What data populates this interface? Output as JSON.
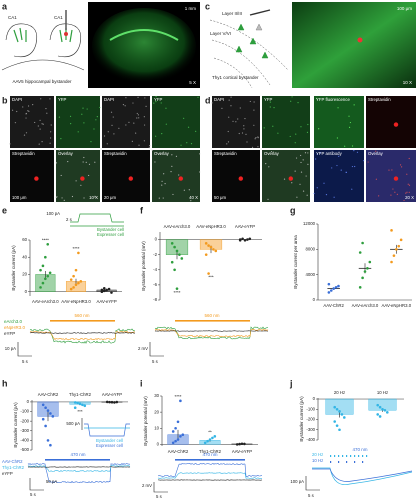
{
  "panel_labels": [
    "a",
    "b",
    "c",
    "d",
    "e",
    "f",
    "g",
    "h",
    "i",
    "j"
  ],
  "panel_a": {
    "left_label": "CA1",
    "right_label": "CA1",
    "caption": "AAV5 hippocampal bystander",
    "scale": "1 mm",
    "magnification": "5 X"
  },
  "panel_b": {
    "left": {
      "channels": [
        "DAPI",
        "YFP",
        "Streptavidin",
        "Overlay"
      ],
      "scale": "100 μm",
      "magnification": "10 X"
    },
    "right": {
      "channels": [
        "DAPI",
        "YFP",
        "Streptavidin",
        "Overlay"
      ],
      "scale": "20 μm",
      "magnification": "40 X"
    }
  },
  "panel_c": {
    "layer_top": "Layer II/III",
    "layer_bottom": "Layer V/VI",
    "caption": "Thy1 cortical bystander",
    "scale": "100 μm",
    "magnification": "10 X"
  },
  "panel_d": {
    "left": {
      "channels": [
        "DAPI",
        "YFP",
        "Streptavidin",
        "Overlay"
      ],
      "scale": "50 μm"
    },
    "right": {
      "channels": [
        "YFP fluorescence",
        "Streptavidin",
        "YFP antibody",
        "Overlay"
      ],
      "magnification": "20 X"
    }
  },
  "chart_data": [
    {
      "type": "bar",
      "y_label": "Bystander current (pA)",
      "categories": [
        "AAV-eArch3.0",
        "AAV-eNpHR3.0",
        "AAV-eYFP"
      ],
      "values": [
        20,
        12,
        2
      ],
      "errors": [
        4,
        3,
        0.8
      ],
      "colors": [
        "#2e9e3e",
        "#f39a1e",
        "#222222"
      ],
      "points": [
        [
          5,
          10,
          15,
          18,
          22,
          25,
          30,
          40,
          55
        ],
        [
          3,
          5,
          8,
          10,
          12,
          14,
          18,
          25,
          45
        ],
        [
          0,
          1,
          2,
          3,
          -1,
          2,
          4
        ]
      ],
      "annotations": [
        "****",
        "****",
        null
      ],
      "ylim": [
        -5,
        60
      ],
      "yticks": [
        0,
        20,
        40,
        60
      ],
      "category_label_side": "bottom",
      "inset": {
        "scale_y": "100 pA",
        "scale_x": "2 s",
        "bystander": "Bystander cell",
        "expresser": "Expresser cell"
      },
      "traces": {
        "legend": [
          "eArch3.0",
          "eNpHR3.0",
          "eYFP"
        ],
        "light": "560 nm",
        "scale_y": "10 pA",
        "scale_x": "5 s"
      }
    },
    {
      "type": "bar",
      "y_label": "Bystander potential (mV)",
      "categories": [
        "AAV-eArch3.0",
        "AAV-eNpHR3.0",
        "AAV-eYFP"
      ],
      "values": [
        -2,
        -1.3,
        0
      ],
      "errors": [
        0.6,
        0.5,
        0.05
      ],
      "colors": [
        "#2e9e3e",
        "#f39a1e",
        "#222222"
      ],
      "points": [
        [
          -0.5,
          -1,
          -1.5,
          -2,
          -2.5,
          -3,
          -4,
          -6.5
        ],
        [
          -0.5,
          -0.8,
          -1,
          -1.3,
          -1.5,
          -2,
          -4.5
        ],
        [
          0,
          0.1,
          -0.1,
          0,
          0.1,
          -0.1
        ]
      ],
      "annotations": [
        "****",
        "***",
        null
      ],
      "ylim": [
        -8,
        1
      ],
      "yticks": [
        0,
        -2,
        -4,
        -6,
        -8
      ],
      "category_label_side": "top",
      "traces": {
        "light": "560 nm",
        "scale_y": "2 mV",
        "scale_x": "5 s"
      }
    },
    {
      "type": "dot",
      "y_label": "Bystander current per area",
      "categories": [
        "AAV-ChR2",
        "AAV-eArch3.0",
        "AAV-eNpHR3.0"
      ],
      "values": [
        1800,
        5000,
        8000
      ],
      "errors": [
        200,
        800,
        700
      ],
      "colors": [
        "#3a6fd8",
        "#2e9e3e",
        "#f39a1e"
      ],
      "points": [
        [
          1200,
          1500,
          1800,
          2000,
          2200,
          2500
        ],
        [
          2000,
          3500,
          4500,
          5000,
          6000,
          7500,
          9000
        ],
        [
          6000,
          7000,
          8000,
          8500,
          9500,
          11000
        ]
      ],
      "ylim": [
        0,
        12000
      ],
      "yticks": [
        0,
        4000,
        8000,
        12000
      ],
      "category_label_side": "bottom"
    },
    {
      "type": "bar",
      "y_label": "Bystander current (pA)",
      "categories": [
        "AAV-ChR2",
        "Thy1-ChR2",
        "AAV-eYFP"
      ],
      "values": [
        -150,
        -25,
        -3
      ],
      "errors": [
        50,
        8,
        1
      ],
      "colors": [
        "#3a6fd8",
        "#33b5e5",
        "#222222"
      ],
      "points": [
        [
          -30,
          -60,
          -90,
          -120,
          -150,
          -180,
          -250,
          -400,
          -450
        ],
        [
          -5,
          -10,
          -20,
          -30,
          -40,
          -60
        ],
        [
          0,
          -2,
          -3,
          -5,
          -1
        ]
      ],
      "annotations": [
        null,
        "***",
        null
      ],
      "ylim": [
        -500,
        20
      ],
      "yticks": [
        0,
        -100,
        -200,
        -300,
        -400,
        -500
      ],
      "category_label_side": "top",
      "inset": {
        "scale_y": "500 pA",
        "bystander": "Bystander cell",
        "expresser": "Expresser cell"
      },
      "traces": {
        "legend": [
          "AAV-ChR2",
          "Thy1-ChR2",
          "eYFP"
        ],
        "light": "470 nm",
        "scale_y": "50 pA",
        "scale_x": "5 s"
      }
    },
    {
      "type": "bar",
      "y_label": "Bystander potential (mV)",
      "categories": [
        "AAV-ChR2",
        "Thy1-ChR2",
        "AAV-eYFP"
      ],
      "values": [
        6,
        2.5,
        0.3
      ],
      "errors": [
        3,
        0.8,
        0.1
      ],
      "colors": [
        "#3a6fd8",
        "#33b5e5",
        "#222222"
      ],
      "points": [
        [
          1,
          2,
          3,
          5,
          6,
          8,
          10,
          14,
          27
        ],
        [
          1,
          2,
          3,
          4,
          5
        ],
        [
          0,
          0.2,
          0.4,
          0.3
        ]
      ],
      "annotations": [
        "****",
        "**",
        null
      ],
      "ylim": [
        -1,
        30
      ],
      "yticks": [
        0,
        10,
        20,
        30
      ],
      "category_label_side": "bottom",
      "traces": {
        "light": "470 nm",
        "scale_y": "2 mV",
        "scale_x": "5 s"
      }
    },
    {
      "type": "bar",
      "y_label": "Bystander current (pA)",
      "categories": [
        "20 Hz",
        "10 Hz"
      ],
      "values": [
        -150,
        -110
      ],
      "errors": [
        30,
        15
      ],
      "colors": [
        "#33b5e5",
        "#33b5e5"
      ],
      "points": [
        [
          -80,
          -100,
          -120,
          -150,
          -180,
          -220,
          -260,
          -300
        ],
        [
          -60,
          -80,
          -100,
          -110,
          -130,
          -150,
          -170
        ]
      ],
      "ylim": [
        -400,
        10
      ],
      "yticks": [
        0,
        -100,
        -200,
        -300,
        -400
      ],
      "category_label_side": "top",
      "traces": {
        "legend": [
          "20 Hz",
          "10 Hz"
        ],
        "light": "470 nm",
        "scale_y": "100 pA",
        "scale_x": "5 s"
      }
    }
  ]
}
